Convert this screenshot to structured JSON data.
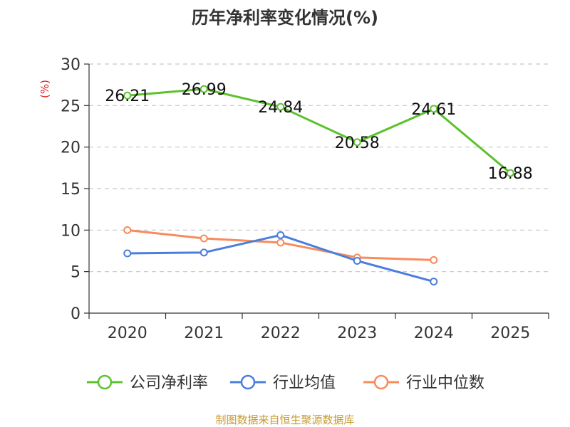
{
  "chart_data": {
    "type": "line",
    "title": "历年净利率变化情况(%)",
    "ylabel": "(%)",
    "xlabel": "",
    "categories": [
      "2020",
      "2021",
      "2022",
      "2023",
      "2024",
      "2025"
    ],
    "yticks": [
      "0",
      "5",
      "10",
      "15",
      "20",
      "25",
      "30"
    ],
    "ylim": [
      0,
      30
    ],
    "grid": true,
    "series": [
      {
        "name": "公司净利率",
        "color": "#5cc22c",
        "values": [
          26.21,
          26.99,
          24.84,
          20.58,
          24.61,
          16.88
        ],
        "labels": [
          "26.21",
          "26.99",
          "24.84",
          "20.58",
          "24.61",
          "16.88"
        ]
      },
      {
        "name": "行业均值",
        "color": "#4a7ede",
        "values": [
          7.2,
          7.3,
          9.4,
          6.3,
          3.8,
          null
        ]
      },
      {
        "name": "行业中位数",
        "color": "#f98a5c",
        "values": [
          10.0,
          9.0,
          8.5,
          6.7,
          6.4,
          null
        ]
      }
    ],
    "legend": "bottom",
    "source": "制图数据来自恒生聚源数据库"
  }
}
